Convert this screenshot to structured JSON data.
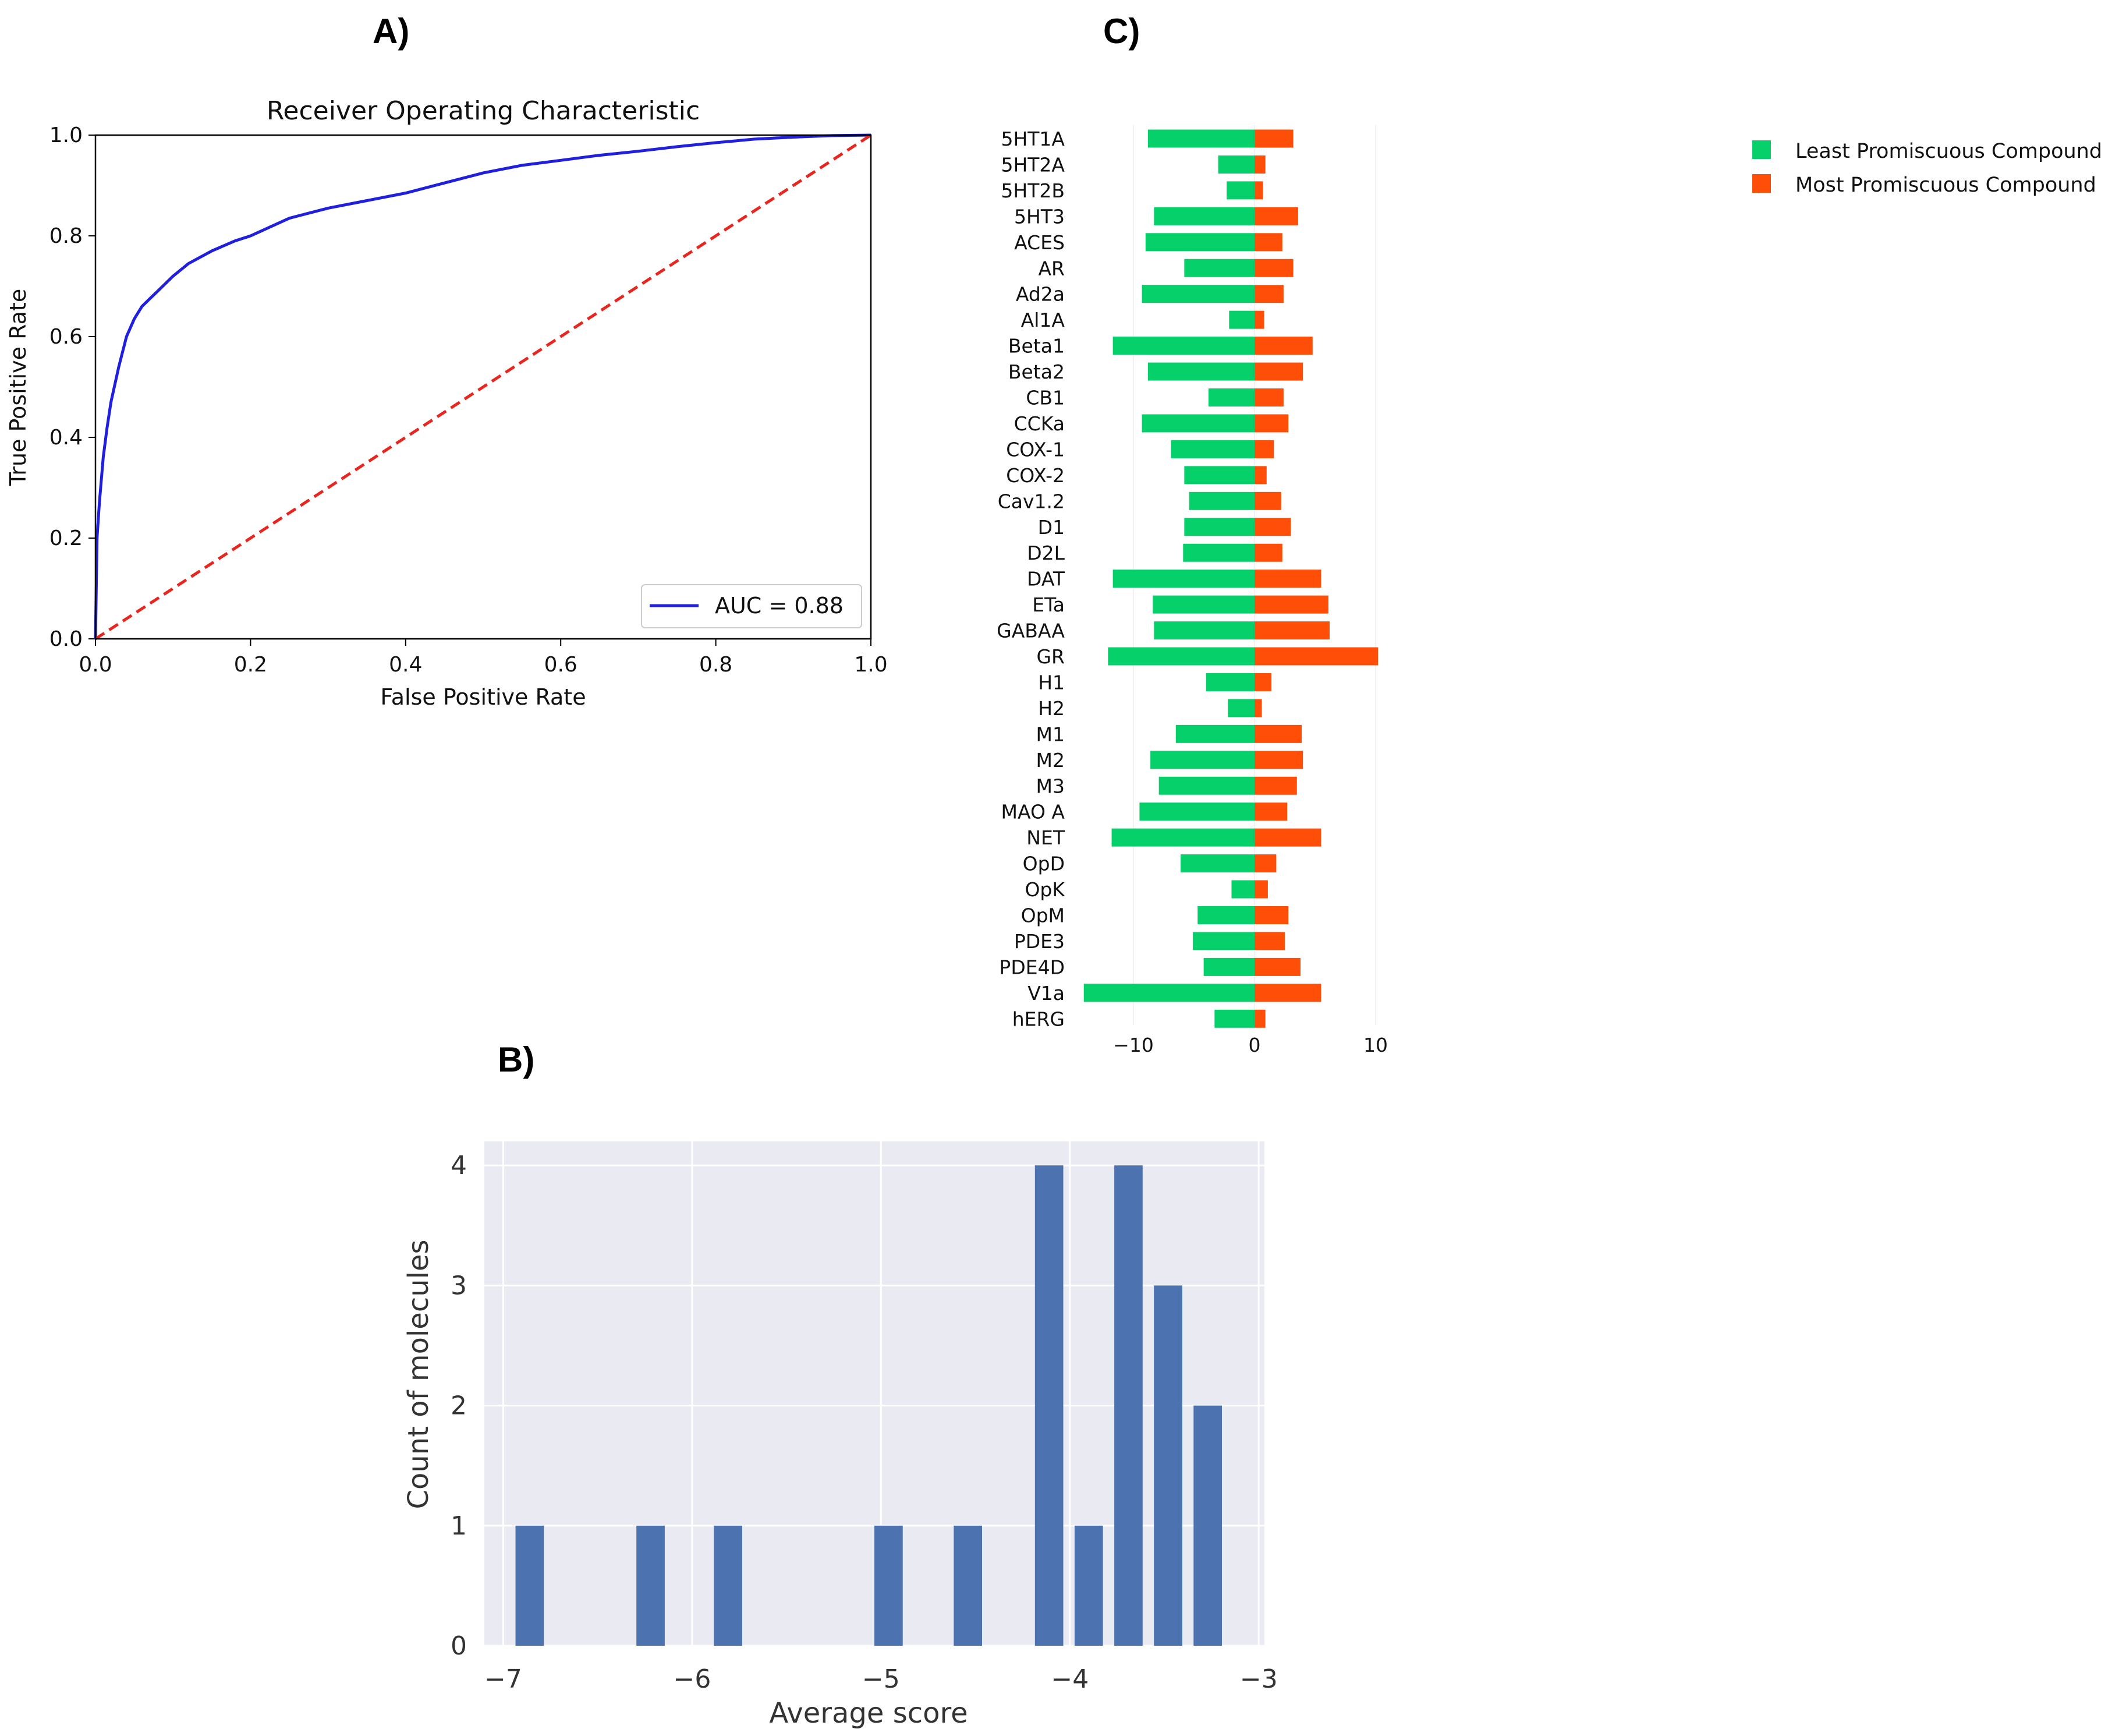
{
  "panels": {
    "a": "A)",
    "b": "B)",
    "c": "C)"
  },
  "colors": {
    "roc": "#1f1fdd",
    "chance": "#e8261f",
    "least": "#06d06a",
    "most": "#ff4e08",
    "hist_bar": "#4c72b0",
    "hist_bg": "#eaeaf2"
  },
  "chart_data": [
    {
      "id": "roc",
      "type": "line",
      "title": "Receiver Operating Characteristic",
      "xlabel": "False Positive Rate",
      "ylabel": "True Positive Rate",
      "xlim": [
        0,
        1
      ],
      "ylim": [
        0,
        1
      ],
      "xticks": [
        "0.0",
        "0.2",
        "0.4",
        "0.6",
        "0.8",
        "1.0"
      ],
      "yticks": [
        "0.0",
        "0.2",
        "0.4",
        "0.6",
        "0.8",
        "1.0"
      ],
      "grid": false,
      "legend_position": "lower-right",
      "series": [
        {
          "name": "AUC = 0.88",
          "style": "solid",
          "x": [
            0,
            0.002,
            0.005,
            0.01,
            0.015,
            0.02,
            0.03,
            0.04,
            0.05,
            0.06,
            0.07,
            0.08,
            0.1,
            0.12,
            0.15,
            0.18,
            0.2,
            0.25,
            0.3,
            0.35,
            0.4,
            0.45,
            0.5,
            0.55,
            0.6,
            0.65,
            0.7,
            0.75,
            0.8,
            0.85,
            0.9,
            0.95,
            1.0
          ],
          "y": [
            0,
            0.2,
            0.27,
            0.36,
            0.42,
            0.47,
            0.54,
            0.6,
            0.635,
            0.66,
            0.675,
            0.69,
            0.72,
            0.745,
            0.77,
            0.79,
            0.8,
            0.835,
            0.855,
            0.87,
            0.885,
            0.905,
            0.925,
            0.94,
            0.95,
            0.96,
            0.968,
            0.977,
            0.985,
            0.992,
            0.996,
            0.999,
            1.0
          ]
        },
        {
          "name": "",
          "style": "dashed",
          "x": [
            0,
            1
          ],
          "y": [
            0,
            1
          ]
        }
      ]
    },
    {
      "id": "promiscuity",
      "type": "bar",
      "orientation": "horizontal",
      "categories": [
        "5HT1A",
        "5HT2A",
        "5HT2B",
        "5HT3",
        "ACES",
        "AR",
        "Ad2a",
        "Al1A",
        "Beta1",
        "Beta2",
        "CB1",
        "CCKa",
        "COX-1",
        "COX-2",
        "Cav1.2",
        "D1",
        "D2L",
        "DAT",
        "ETa",
        "GABAA",
        "GR",
        "H1",
        "H2",
        "M1",
        "M2",
        "M3",
        "MAO A",
        "NET",
        "OpD",
        "OpK",
        "OpM",
        "PDE3",
        "PDE4D",
        "V1a",
        "hERG"
      ],
      "xlim": [
        -14.5,
        10.5
      ],
      "xticks": [
        "−10",
        "0",
        "10"
      ],
      "xtick_values": [
        -10,
        0,
        10
      ],
      "legend_position": "top-right-outside",
      "series": [
        {
          "name": "Least Promiscuous Compound",
          "values": [
            -8.8,
            -3.0,
            -2.3,
            -8.3,
            -9.0,
            -5.8,
            -9.3,
            -2.1,
            -11.7,
            -8.8,
            -3.8,
            -9.3,
            -6.9,
            -5.8,
            -5.4,
            -5.8,
            -5.9,
            -11.7,
            -8.4,
            -8.3,
            -12.1,
            -4.0,
            -2.2,
            -6.5,
            -8.6,
            -7.9,
            -9.5,
            -11.8,
            -6.1,
            -1.9,
            -4.7,
            -5.1,
            -4.2,
            -14.1,
            -3.3
          ]
        },
        {
          "name": "Most Promiscuous Compound",
          "values": [
            3.2,
            0.9,
            0.7,
            3.6,
            2.3,
            3.2,
            2.4,
            0.8,
            4.8,
            4.0,
            2.4,
            2.8,
            1.6,
            1.0,
            2.2,
            3.0,
            2.3,
            5.5,
            6.1,
            6.2,
            10.2,
            1.4,
            0.6,
            3.9,
            4.0,
            3.5,
            2.7,
            5.5,
            1.8,
            1.1,
            2.8,
            2.5,
            3.8,
            5.5,
            0.9
          ]
        }
      ]
    },
    {
      "id": "histogram",
      "type": "bar",
      "xlabel": "Average score",
      "ylabel": "Count of molecules",
      "xlim": [
        -7.1,
        -2.97
      ],
      "ylim": [
        0,
        4.2
      ],
      "xticks": [
        "−7",
        "−6",
        "−5",
        "−4",
        "−3"
      ],
      "xtick_values": [
        -7,
        -6,
        -5,
        -4,
        -3
      ],
      "yticks": [
        "0",
        "1",
        "2",
        "3",
        "4"
      ],
      "ytick_values": [
        0,
        1,
        2,
        3,
        4
      ],
      "grid": true,
      "bar_width": 0.15,
      "x": [
        -6.86,
        -6.22,
        -5.81,
        -4.96,
        -4.54,
        -4.11,
        -3.9,
        -3.69,
        -3.48,
        -3.27
      ],
      "values": [
        1,
        1,
        1,
        1,
        1,
        4,
        1,
        4,
        3,
        2
      ]
    }
  ]
}
